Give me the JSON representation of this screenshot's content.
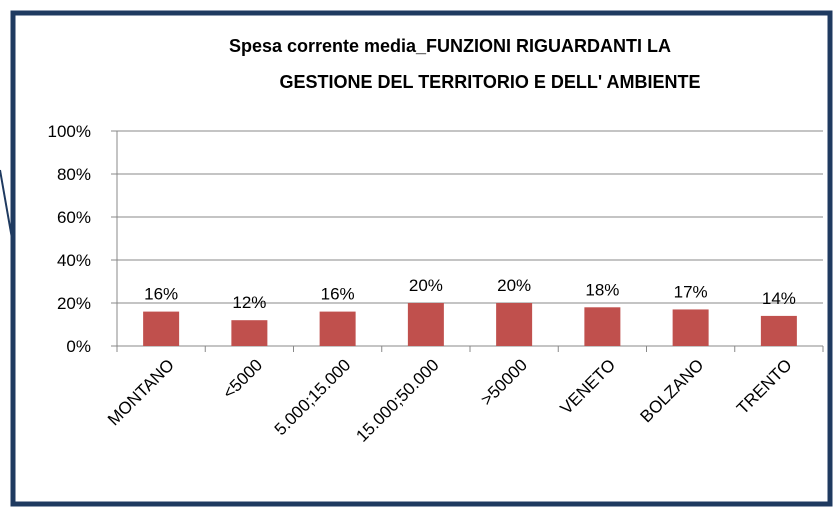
{
  "chart_data": {
    "type": "bar",
    "title": [
      "Spesa corrente media_FUNZIONI RIGUARDANTI LA",
      "GESTIONE DEL TERRITORIO E DELL' AMBIENTE"
    ],
    "categories": [
      "MONTANO",
      "<5000",
      "5.000;15.000",
      "15.000;50.000",
      ">50000",
      "VENETO",
      "BOLZANO",
      "TRENTO"
    ],
    "values": [
      16,
      12,
      16,
      20,
      20,
      18,
      17,
      14
    ],
    "value_labels": [
      "16%",
      "12%",
      "16%",
      "20%",
      "20%",
      "18%",
      "17%",
      "14%"
    ],
    "color": "#c0504d",
    "ylim": [
      0,
      100
    ],
    "yticks": [
      {
        "value": 0,
        "label": "0%"
      },
      {
        "value": 20,
        "label": "20%"
      },
      {
        "value": 40,
        "label": "40%"
      },
      {
        "value": 60,
        "label": "60%"
      },
      {
        "value": 80,
        "label": "80%"
      },
      {
        "value": 100,
        "label": "100%"
      }
    ],
    "grid": true
  }
}
